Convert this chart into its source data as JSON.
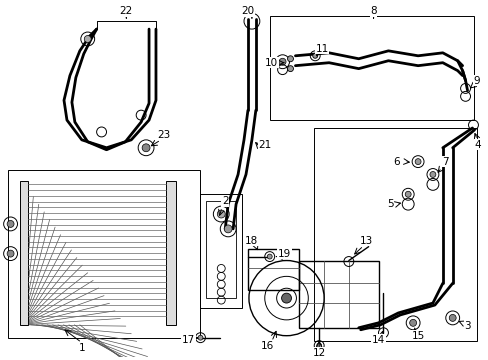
{
  "bg_color": "#ffffff",
  "line_color": "#000000",
  "fig_width": 4.89,
  "fig_height": 3.6,
  "dpi": 100,
  "lw_thin": 0.7,
  "lw_main": 1.0,
  "lw_thick": 1.6,
  "lw_pipe": 2.0
}
